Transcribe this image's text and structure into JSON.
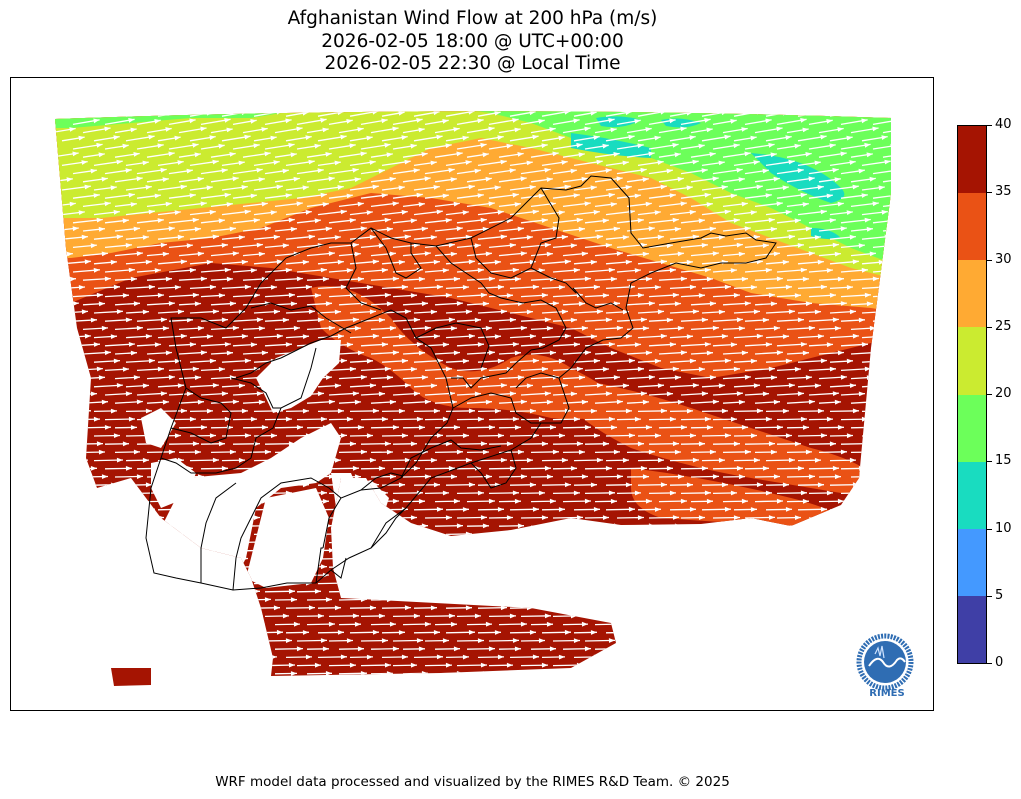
{
  "title": {
    "line1": "Afghanistan Wind Flow at 200 hPa (m/s)",
    "line2": "2026-02-05 18:00 @ UTC+00:00",
    "line3": "2026-02-05 22:30 @ Local Time"
  },
  "colorbar": {
    "ticks": [
      "0",
      "5",
      "10",
      "15",
      "20",
      "25",
      "30",
      "35",
      "40"
    ],
    "bins": [
      {
        "from": 0,
        "to": 5,
        "color": "#3f3fa6"
      },
      {
        "from": 5,
        "to": 10,
        "color": "#4499ff"
      },
      {
        "from": 10,
        "to": 15,
        "color": "#19dcc0"
      },
      {
        "from": 15,
        "to": 20,
        "color": "#6cff5a"
      },
      {
        "from": 20,
        "to": 25,
        "color": "#cbeb30"
      },
      {
        "from": 25,
        "to": 30,
        "color": "#ffaa33"
      },
      {
        "from": 30,
        "to": 35,
        "color": "#ea5215"
      },
      {
        "from": 35,
        "to": 40,
        "color": "#a51402"
      }
    ]
  },
  "map": {
    "vector_color": "#ffffff",
    "boundary_color": "#000000",
    "land_mask_color": "#ffffff"
  },
  "logo": {
    "text": "RIMES",
    "ring_text": "Regional Integrated Multi-Hazard Early Warning System",
    "color": "#2f6db3"
  },
  "footer": "WRF model data processed and visualized by the RIMES R&D Team. © 2025"
}
